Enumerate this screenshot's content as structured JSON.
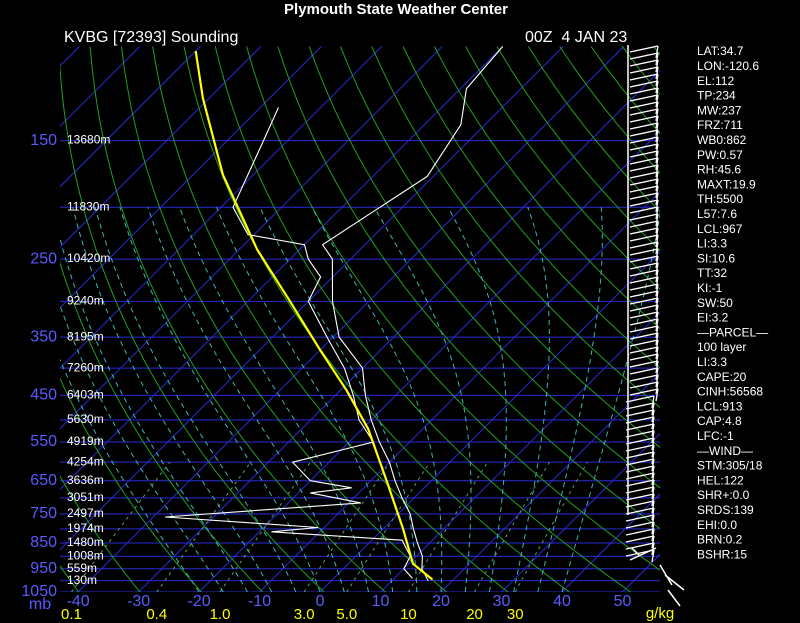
{
  "chart_data": {
    "type": "skewt",
    "title": "Plymouth State Weather Center",
    "station": "KVBG [72393] Sounding",
    "time": "00Z  4 JAN 23",
    "yscale": "log",
    "ylim": [
      1050,
      100
    ],
    "yticks": [
      150,
      250,
      350,
      450,
      550,
      650,
      750,
      850,
      950,
      1050
    ],
    "y_unit": "mb",
    "xlim": [
      -43,
      56.2
    ],
    "xticks": [
      -40,
      -30,
      -20,
      -10,
      0,
      10,
      20,
      30,
      40,
      50
    ],
    "mixing_ratio_ticks": [
      0.1,
      0.4,
      {
        "value": 1,
        "label": "1.0"
      },
      {
        "value": 3,
        "label": "3.0"
      },
      {
        "value": 5,
        "label": "5.0"
      },
      10,
      20,
      30
    ],
    "mixing_ratio_unit": "g/kg",
    "height_labels": [
      {
        "pressure": 150,
        "label": "13680m"
      },
      {
        "pressure": 200,
        "label": "11830m"
      },
      {
        "pressure": 250,
        "label": "10420m"
      },
      {
        "pressure": 300,
        "label": "9240m"
      },
      {
        "pressure": 350,
        "label": "8195m"
      },
      {
        "pressure": 400,
        "label": "7260m"
      },
      {
        "pressure": 450,
        "label": "6403m"
      },
      {
        "pressure": 500,
        "label": "5630m"
      },
      {
        "pressure": 550,
        "label": "4919m"
      },
      {
        "pressure": 600,
        "label": "4254m"
      },
      {
        "pressure": 650,
        "label": "3636m"
      },
      {
        "pressure": 700,
        "label": "3051m"
      },
      {
        "pressure": 750,
        "label": "2497m"
      },
      {
        "pressure": 800,
        "label": "1974m"
      },
      {
        "pressure": 850,
        "label": "1480m"
      },
      {
        "pressure": 900,
        "label": "1008m"
      },
      {
        "pressure": 950,
        "label": "559m"
      },
      {
        "pressure": 1000,
        "label": "130m"
      }
    ],
    "series": [
      {
        "color": "#ffffff",
        "pressure": [
          100,
          120,
          140,
          175,
          235,
          250,
          300,
          350,
          400,
          450,
          500,
          550,
          600,
          650,
          700,
          750,
          800,
          850,
          900,
          950,
          1000
        ],
        "values": [
          -60,
          -59,
          -54,
          -51,
          -57,
          -53,
          -46,
          -39,
          -30,
          -25,
          -20,
          -15,
          -10,
          -6,
          -2,
          2,
          5,
          8,
          11,
          13,
          16
        ]
      },
      {
        "color": "#ffffff",
        "pressure": [
          130,
          150,
          200,
          225,
          235,
          250,
          270,
          300,
          350,
          400,
          450,
          500,
          550,
          600,
          650,
          670,
          685,
          715,
          760,
          795,
          810,
          840,
          900,
          950,
          990
        ],
        "values": [
          -87,
          -84,
          -78,
          -71,
          -60,
          -57,
          -52,
          -50,
          -41,
          -33,
          -27,
          -22,
          -16,
          -26,
          -20,
          -12,
          -18,
          -8,
          -38,
          -11,
          -18,
          5,
          9,
          10,
          13
        ]
      },
      {
        "color": "#ffff00",
        "pressure": [
          995,
          930,
          800,
          650,
          520,
          440,
          370,
          300,
          240,
          174,
          125,
          102
        ],
        "values": [
          16.5,
          10.7,
          3.3,
          -7.4,
          -19,
          -29,
          -40,
          -53,
          -67,
          -85,
          -101,
          -110
        ]
      }
    ],
    "indices": [
      "LAT:34.7",
      "LON:-120.6",
      "EL:112",
      "TP:234",
      "MW:237",
      "FRZ:711",
      "WB0:862",
      "PW:0.57",
      "RH:45.6",
      "MAXT:19.9",
      "TH:5500",
      "L57:7.6",
      "LCL:967",
      "LI:3.3",
      "SI:10.6",
      "TT:32",
      "KI:-1",
      "SW:50",
      "EI:3.2",
      "—PARCEL—",
      "100 layer",
      "LI:3.3",
      "CAPE:20",
      "CINH:56568",
      "LCL:913",
      "CAP:4.8",
      "LFC:-1",
      "—WIND—",
      "STM:305/18",
      "HEL:122",
      "SHR+:0.0",
      "SRDS:139",
      "EHI:0.0",
      "BRN:0.2",
      "BSHR:15"
    ]
  }
}
